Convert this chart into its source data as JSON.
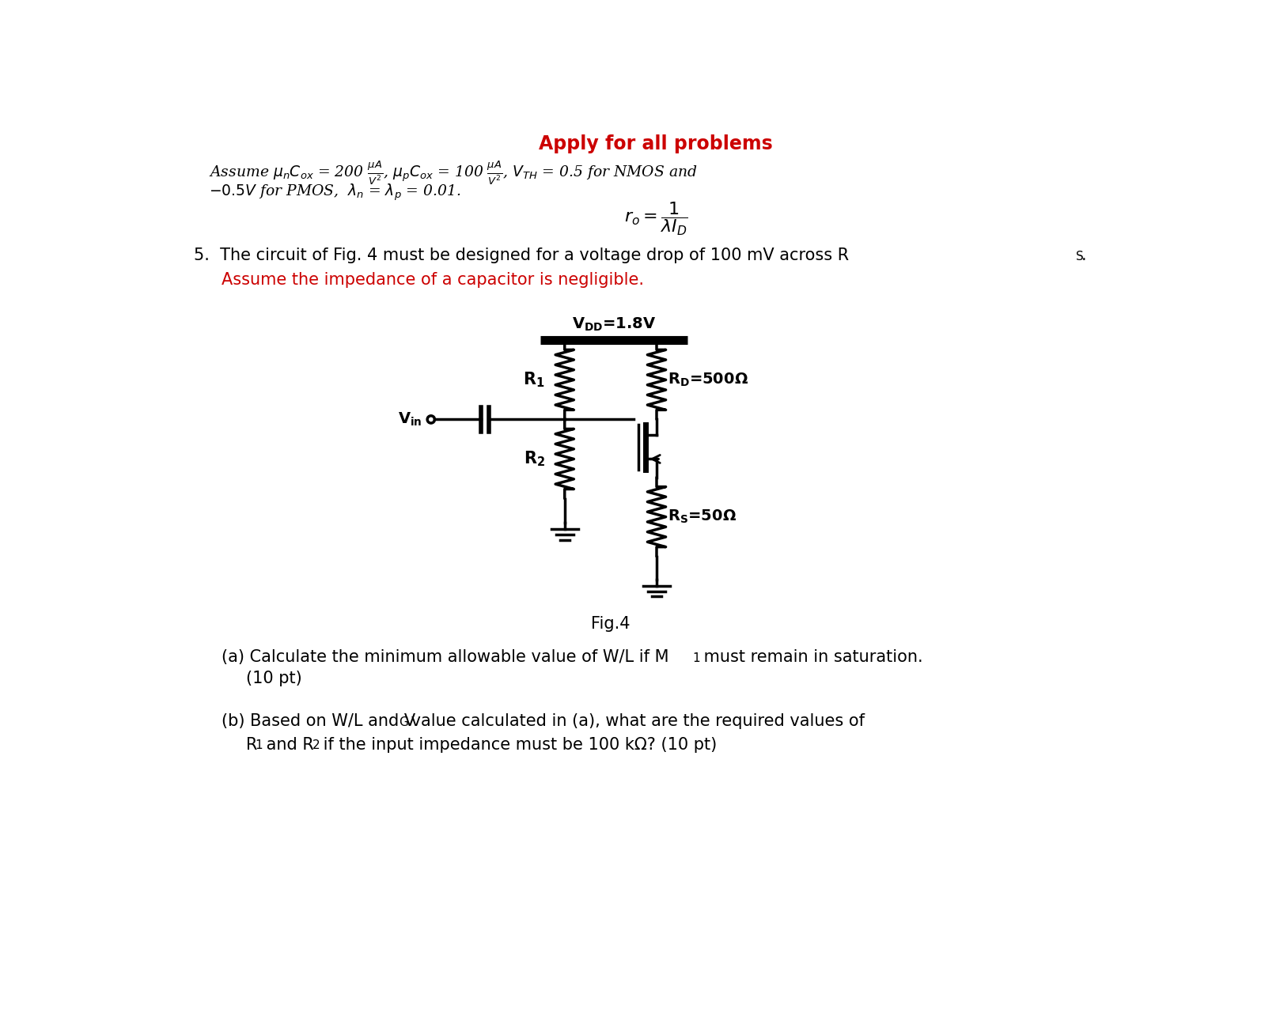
{
  "title_apply": "Apply for all problems",
  "title_apply_color": "#cc0000",
  "assume_line1": "Assume $\\mu_n C_{ox}$ = 200 $\\frac{\\mu A}{V^2}$, $\\mu_p C_{ox}$ = 100 $\\frac{\\mu A}{V^2}$, $V_{TH}$ = 0.5 for NMOS and",
  "assume_line2": "$-0.5V$ for PMOS,  $\\lambda_n$ = $\\lambda_p$ = 0.01.",
  "ro_formula": "$r_o = \\dfrac{1}{\\lambda I_D}$",
  "vdd_label": "$\\mathbf{V_{DD}}$=1.8V",
  "rd_label": "$\\mathbf{R_D}$=500Ω",
  "rs_label": "$\\mathbf{R_S}$=50Ω",
  "r1_label": "$\\mathbf{R_1}$",
  "r2_label": "$\\mathbf{R_2}$",
  "vin_label": "$\\mathbf{V_{in}}$",
  "fig_label": "Fig.4",
  "bg_color": "#ffffff",
  "text_color": "#000000"
}
